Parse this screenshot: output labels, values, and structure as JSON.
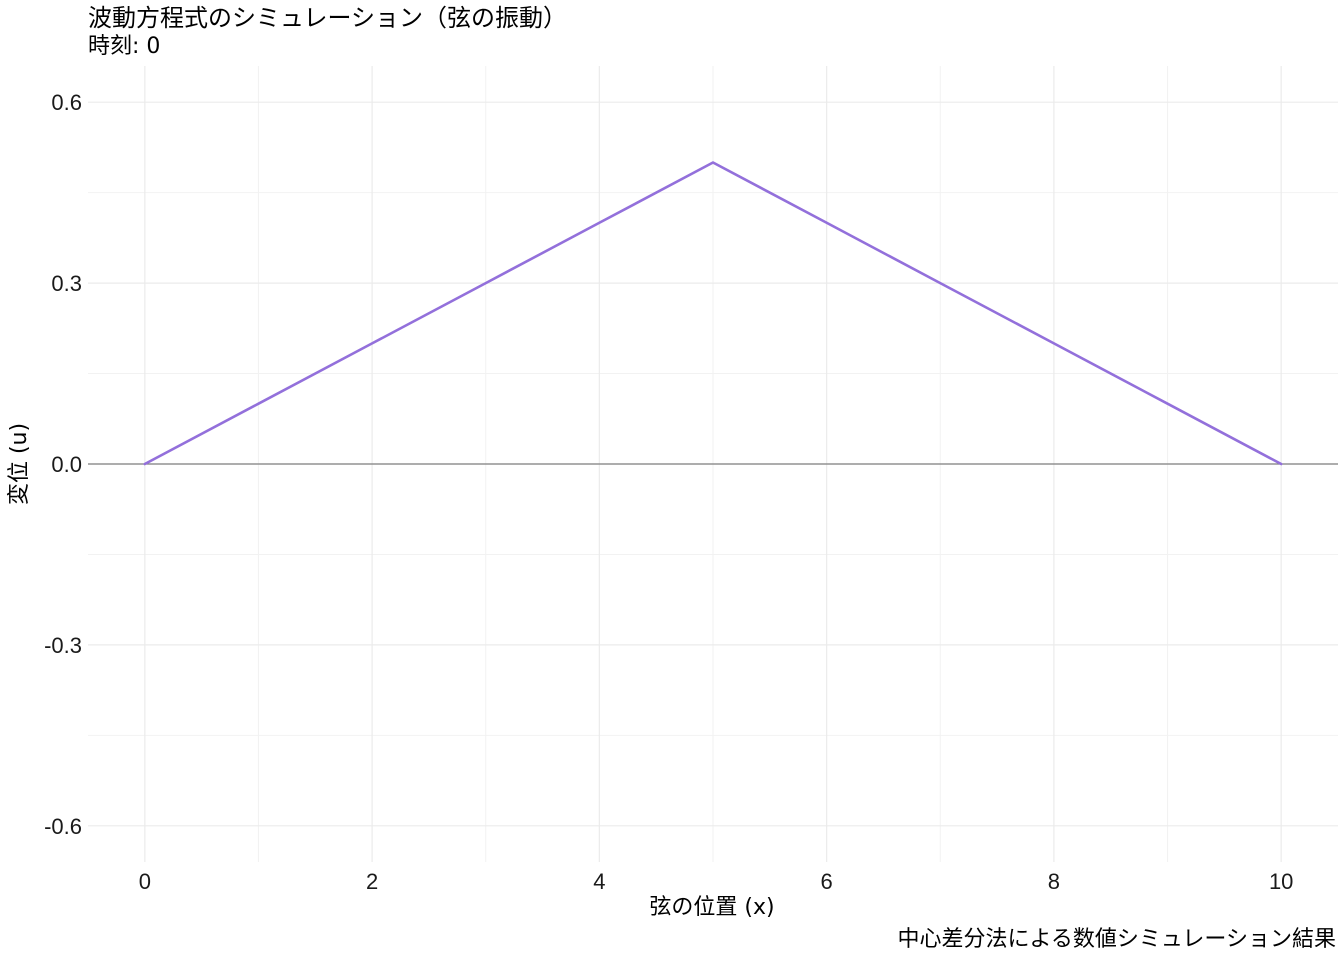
{
  "chart_data": {
    "type": "line",
    "title": "波動方程式のシミュレーション（弦の振動）",
    "subtitle": "時刻: 0",
    "caption": "中心差分法による数値シミュレーション結果",
    "xlabel": "弦の位置 (x)",
    "ylabel": "変位 (u)",
    "xlim": [
      -0.5,
      10.5
    ],
    "ylim": [
      -0.66,
      0.66
    ],
    "x_ticks": [
      0,
      2,
      4,
      6,
      8,
      10
    ],
    "x_tick_labels": [
      "0",
      "2",
      "4",
      "6",
      "8",
      "10"
    ],
    "y_ticks": [
      0.6,
      0.3,
      0.0,
      -0.3,
      -0.6
    ],
    "y_tick_labels": [
      "0.6",
      "0.3",
      "0.0",
      "-0.3",
      "-0.6"
    ],
    "grid": true,
    "reference_line_y": 0,
    "series": [
      {
        "color": "#9370DB",
        "x": [
          0,
          1,
          2,
          3,
          4,
          5,
          6,
          7,
          8,
          9,
          10
        ],
        "y": [
          0,
          0.1,
          0.2,
          0.3,
          0.4,
          0.5,
          0.4,
          0.3,
          0.2,
          0.1,
          0
        ]
      }
    ]
  }
}
